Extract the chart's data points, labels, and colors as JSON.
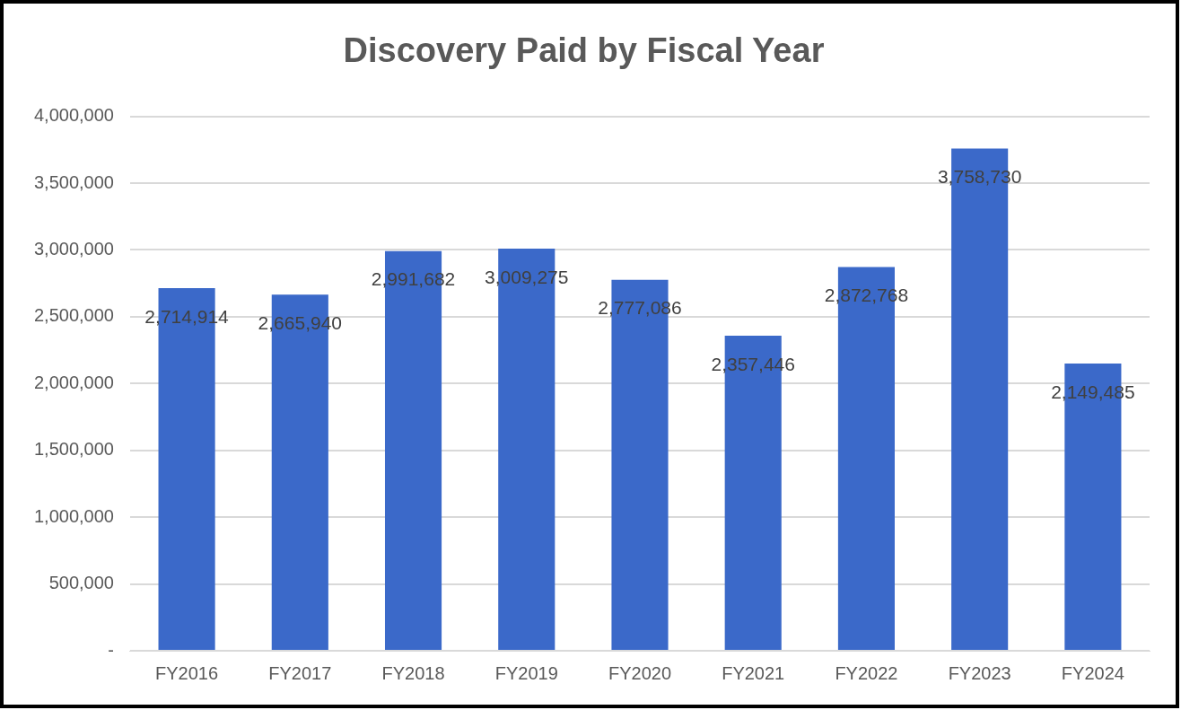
{
  "chart_data": {
    "type": "bar",
    "title": "Discovery Paid by Fiscal Year",
    "categories": [
      "FY2016",
      "FY2017",
      "FY2018",
      "FY2019",
      "FY2020",
      "FY2021",
      "FY2022",
      "FY2023",
      "FY2024"
    ],
    "values": [
      2714914,
      2665940,
      2991682,
      3009275,
      2777086,
      2357446,
      2872768,
      3758730,
      2149485
    ],
    "value_labels": [
      "2,714,914",
      "2,665,940",
      "2,991,682",
      "3,009,275",
      "2,777,086",
      "2,357,446",
      "2,872,768",
      "3,758,730",
      "2,149,485"
    ],
    "color": "#3b69c9",
    "ylim": [
      0,
      4000000
    ],
    "yticks": [
      {
        "value": 0,
        "label": "-"
      },
      {
        "value": 500000,
        "label": "500,000"
      },
      {
        "value": 1000000,
        "label": "1,000,000"
      },
      {
        "value": 1500000,
        "label": "1,500,000"
      },
      {
        "value": 2000000,
        "label": "2,000,000"
      },
      {
        "value": 2500000,
        "label": "2,500,000"
      },
      {
        "value": 3000000,
        "label": "3,000,000"
      },
      {
        "value": 3500000,
        "label": "3,500,000"
      },
      {
        "value": 4000000,
        "label": "4,000,000"
      }
    ],
    "grid": "y"
  }
}
